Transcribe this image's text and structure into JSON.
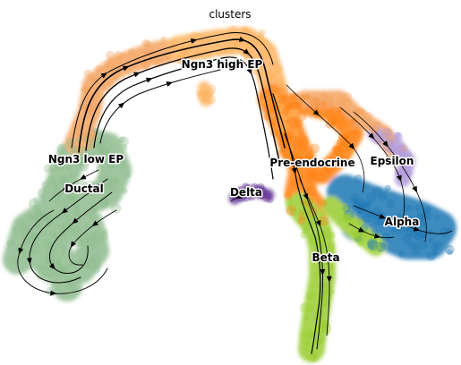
{
  "chart_data": {
    "type": "scatter",
    "title": "clusters",
    "xlabel": "",
    "ylabel": "",
    "grid": false,
    "axes_visible": false,
    "legend": "on data",
    "series": [
      {
        "name": "Ductal",
        "color": "#8fbc8f"
      },
      {
        "name": "Ngn3 low EP",
        "color": "#f4a460"
      },
      {
        "name": "Ngn3 high EP",
        "color": "#fdb462"
      },
      {
        "name": "Pre-endocrine",
        "color": "#ff7f0e"
      },
      {
        "name": "Beta",
        "color": "#9acd32"
      },
      {
        "name": "Alpha",
        "color": "#1f77b4"
      },
      {
        "name": "Delta",
        "color": "#6a3d9a"
      },
      {
        "name": "Epsilon",
        "color": "#b19cd9"
      }
    ],
    "annotations": [
      {
        "text": "Ngn3 high EP"
      },
      {
        "text": "Ngn3 low EP"
      },
      {
        "text": "Ductal"
      },
      {
        "text": "Pre-endocrine"
      },
      {
        "text": "Epsilon"
      },
      {
        "text": "Delta"
      },
      {
        "text": "Alpha"
      },
      {
        "text": "Beta"
      }
    ]
  }
}
